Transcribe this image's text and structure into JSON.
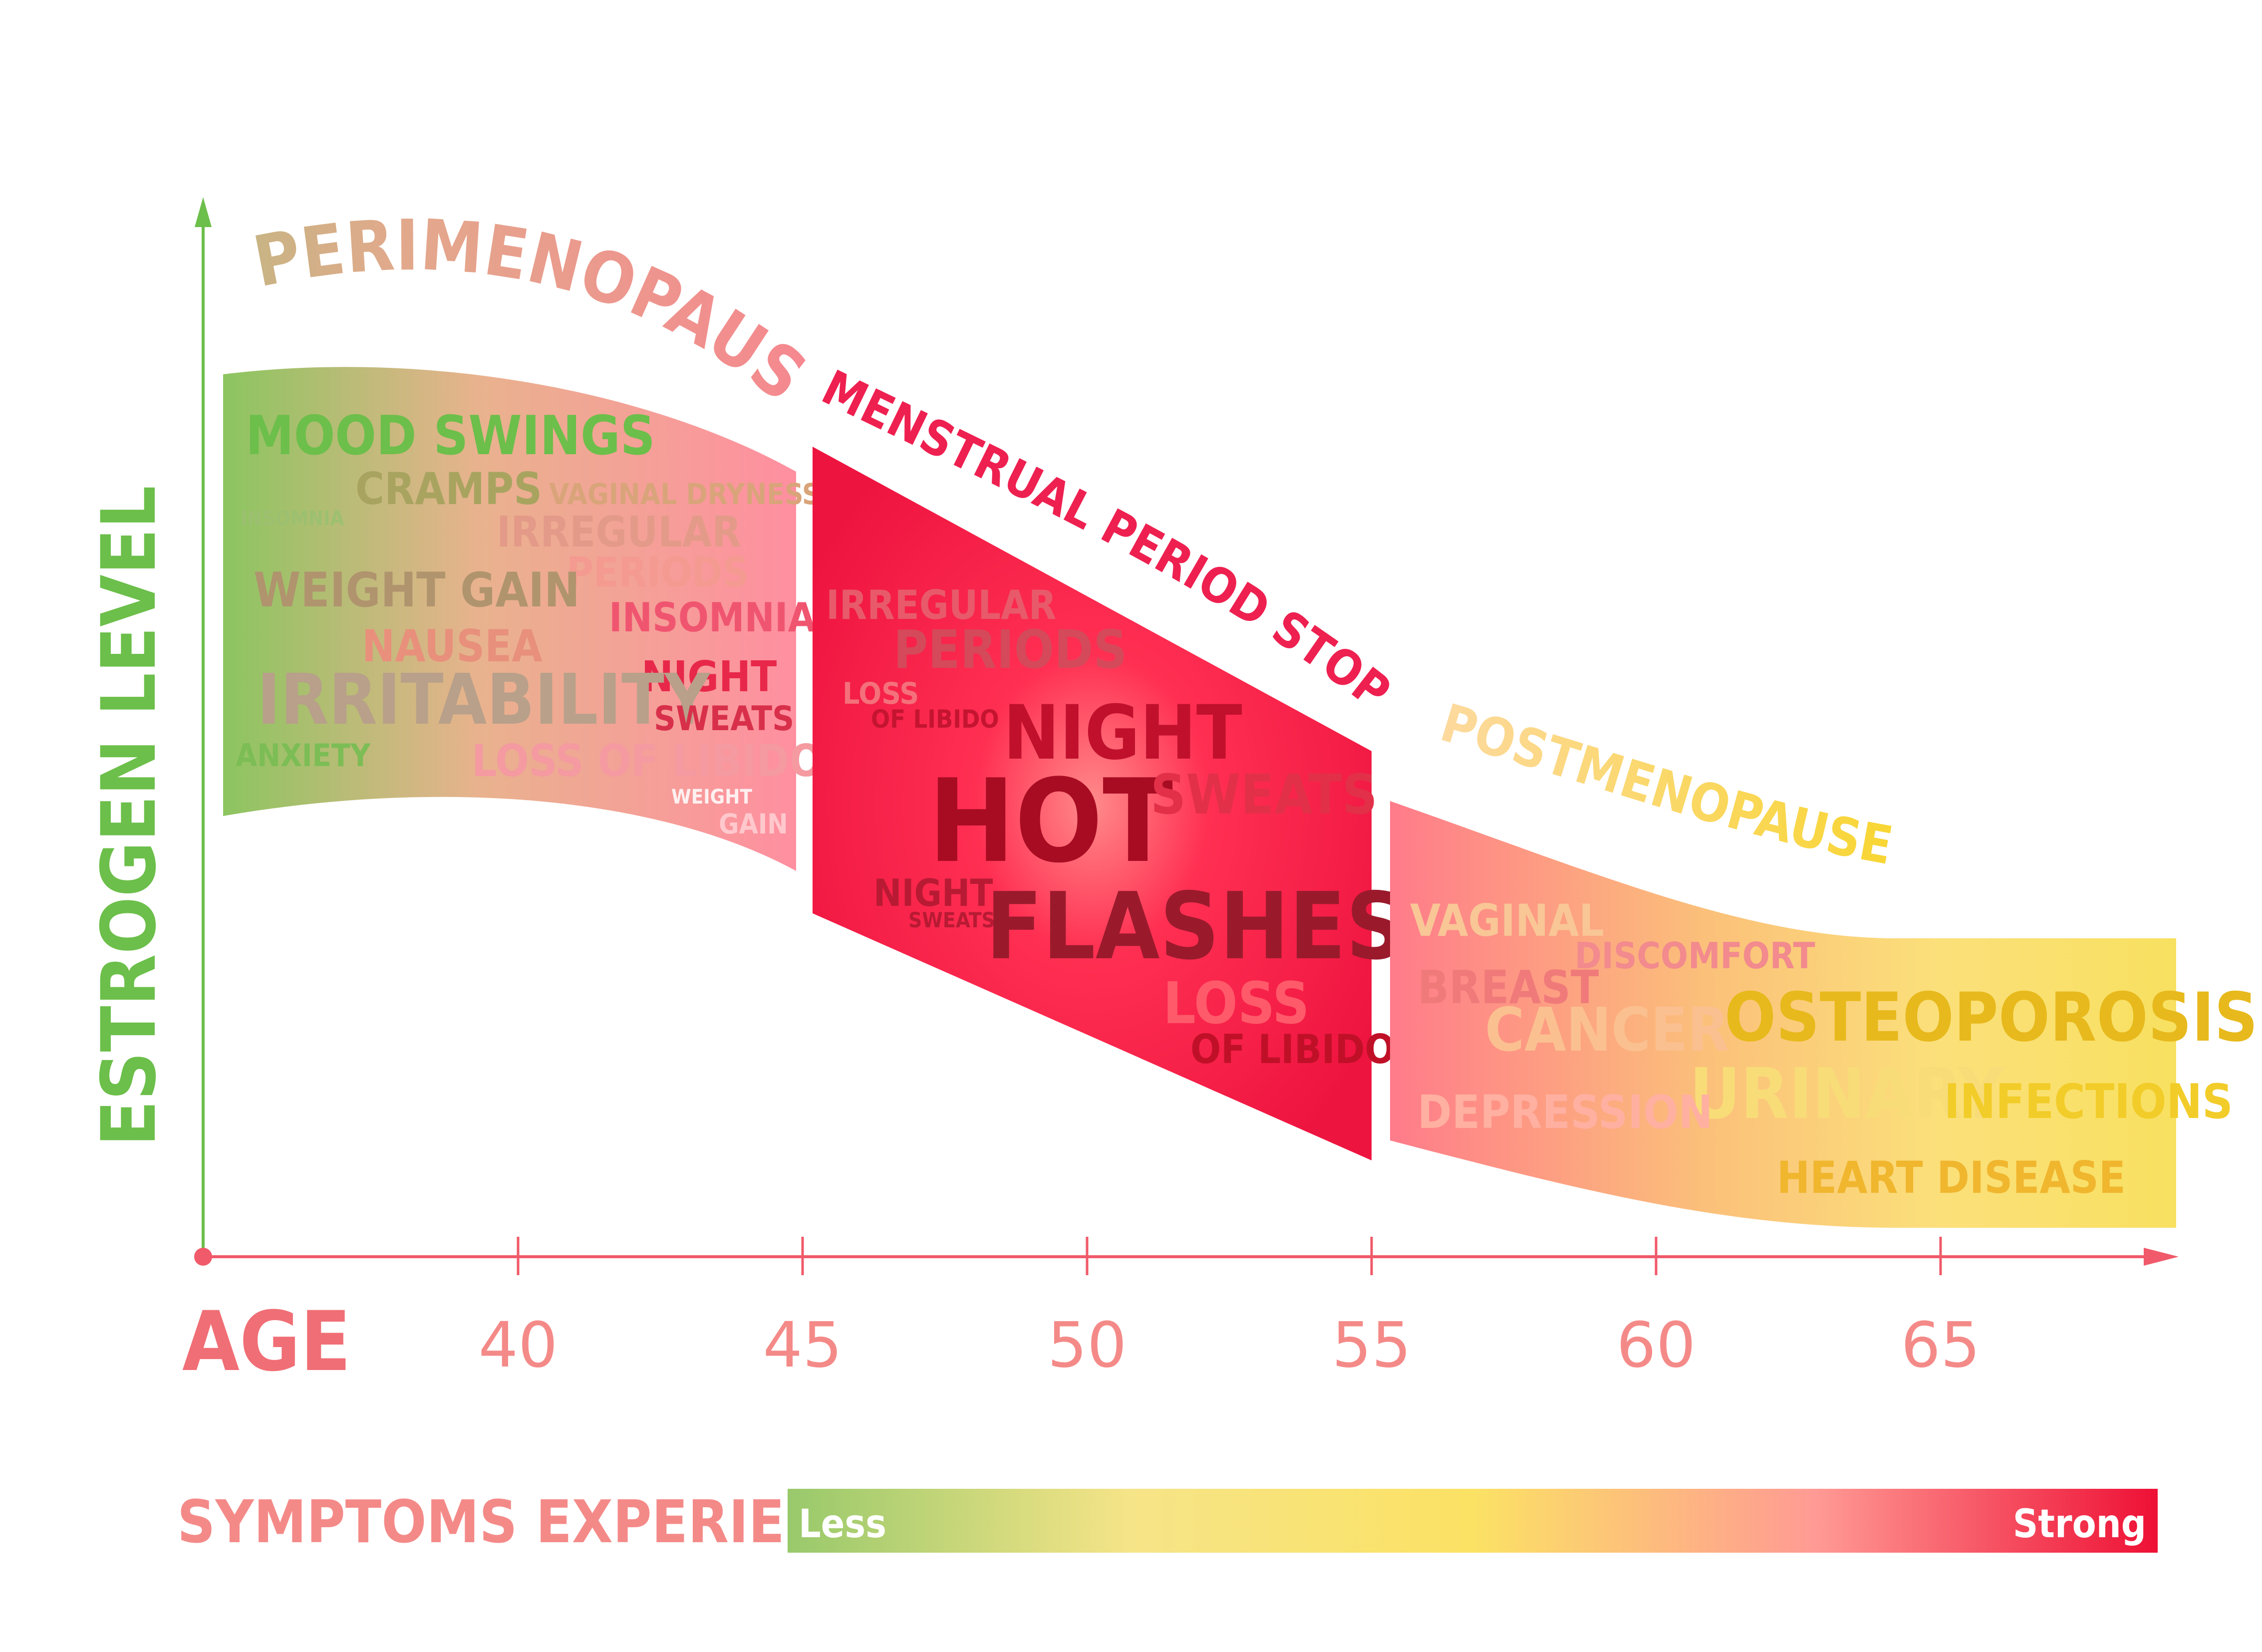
{
  "axes": {
    "y_label": "ESTROGEN LEVEL",
    "x_label": "AGE",
    "ticks": [
      "40",
      "45",
      "50",
      "55",
      "60",
      "65"
    ]
  },
  "phases": {
    "perimenopause": {
      "title": "PERIMENOPAUSE",
      "symptoms": {
        "mood_swings": "MOOD SWINGS",
        "cramps": "CRAMPS",
        "insomnia_small": "INSOMNIA",
        "vaginal_dryness": "VAGINAL DRYNESS",
        "irregular": "IRREGULAR",
        "periods": "PERIODS",
        "weight_gain": "WEIGHT GAIN",
        "insomnia": "INSOMNIA",
        "nausea": "NAUSEA",
        "night": "NIGHT",
        "irritability": "IRRITABILITY",
        "sweats": "SWEATS",
        "anxiety": "ANXIETY",
        "loss_of_libido": "LOSS OF LIBIDO",
        "weight": "WEIGHT",
        "gain": "GAIN"
      }
    },
    "menopause": {
      "title": "MENSTRUAL PERIOD STOPS",
      "symptoms": {
        "irregular": "IRREGULAR",
        "periods": "PERIODS",
        "loss": "LOSS",
        "of_libido": "OF LIBIDO",
        "night": "NIGHT",
        "hot": "HOT",
        "sweats": "SWEATS",
        "night_small": "NIGHT",
        "sweats_small": "SWEATS",
        "flashes": "FLASHES",
        "loss_2": "LOSS",
        "of_libido_2": "OF LIBIDO"
      }
    },
    "postmenopause": {
      "title": "POSTMENOPAUSE",
      "symptoms": {
        "vaginal": "VAGINAL",
        "discomfort": "DISCOMFORT",
        "breast": "BREAST",
        "cancer": "CANCER",
        "osteoporosis": "OSTEOPOROSIS",
        "urinary": "URINARY",
        "infections": "INFECTIONS",
        "depression": "DEPRESSION",
        "heart_disease": "HEART DISEASE"
      }
    }
  },
  "legend": {
    "title": "SYMPTOMS EXPERIENCE",
    "less": "Less",
    "strong": "Strong"
  },
  "colors": {
    "green": "#7cc04f",
    "yellow": "#f9e05d",
    "red": "#ff1f4a",
    "axis_red": "#f05a6a",
    "salmon": "#f48a88"
  }
}
